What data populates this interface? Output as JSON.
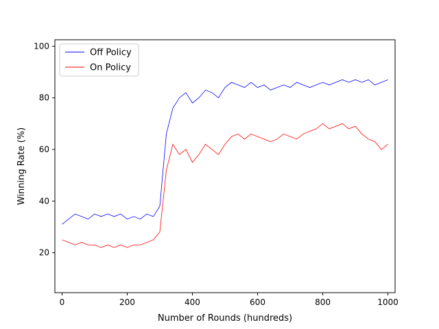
{
  "chart_data": {
    "type": "line",
    "title": "",
    "xlabel": "Number of Rounds (hundreds)",
    "ylabel": "Winning Rate (%)",
    "xlim": [
      -22,
      1022
    ],
    "ylim": [
      4.5,
      102.5
    ],
    "xticks": [
      0,
      200,
      400,
      600,
      800,
      1000
    ],
    "yticks": [
      20,
      40,
      60,
      80,
      100
    ],
    "grid": false,
    "legend_position": "top-left",
    "series": [
      {
        "name": "Off Policy",
        "color": "#0000ff",
        "x": [
          0,
          20,
          40,
          60,
          80,
          100,
          120,
          140,
          160,
          180,
          200,
          220,
          240,
          260,
          280,
          300,
          320,
          340,
          360,
          380,
          400,
          420,
          440,
          460,
          480,
          500,
          520,
          540,
          560,
          580,
          600,
          620,
          640,
          660,
          680,
          700,
          720,
          740,
          760,
          780,
          800,
          820,
          840,
          860,
          880,
          900,
          920,
          940,
          960,
          980,
          1000
        ],
        "values": [
          31,
          33,
          35,
          34,
          33,
          35,
          34,
          35,
          34,
          35,
          33,
          34,
          33,
          35,
          34,
          38,
          66,
          76,
          80,
          82,
          78,
          80,
          83,
          82,
          80,
          84,
          86,
          85,
          84,
          86,
          84,
          85,
          83,
          84,
          85,
          84,
          86,
          85,
          84,
          85,
          86,
          85,
          86,
          87,
          86,
          87,
          86,
          87,
          85,
          86,
          87
        ]
      },
      {
        "name": "On Policy",
        "color": "#ff0000",
        "x": [
          0,
          20,
          40,
          60,
          80,
          100,
          120,
          140,
          160,
          180,
          200,
          220,
          240,
          260,
          280,
          300,
          320,
          340,
          360,
          380,
          400,
          420,
          440,
          460,
          480,
          500,
          520,
          540,
          560,
          580,
          600,
          620,
          640,
          660,
          680,
          700,
          720,
          740,
          760,
          780,
          800,
          820,
          840,
          860,
          880,
          900,
          920,
          940,
          960,
          980,
          1000
        ],
        "values": [
          25,
          24,
          23,
          24,
          23,
          23,
          22,
          23,
          22,
          23,
          22,
          23,
          23,
          24,
          25,
          28,
          52,
          62,
          58,
          60,
          55,
          58,
          62,
          60,
          58,
          62,
          65,
          66,
          64,
          66,
          65,
          64,
          63,
          64,
          66,
          65,
          64,
          66,
          67,
          68,
          70,
          68,
          69,
          70,
          68,
          69,
          66,
          64,
          63,
          60,
          62
        ]
      }
    ]
  }
}
